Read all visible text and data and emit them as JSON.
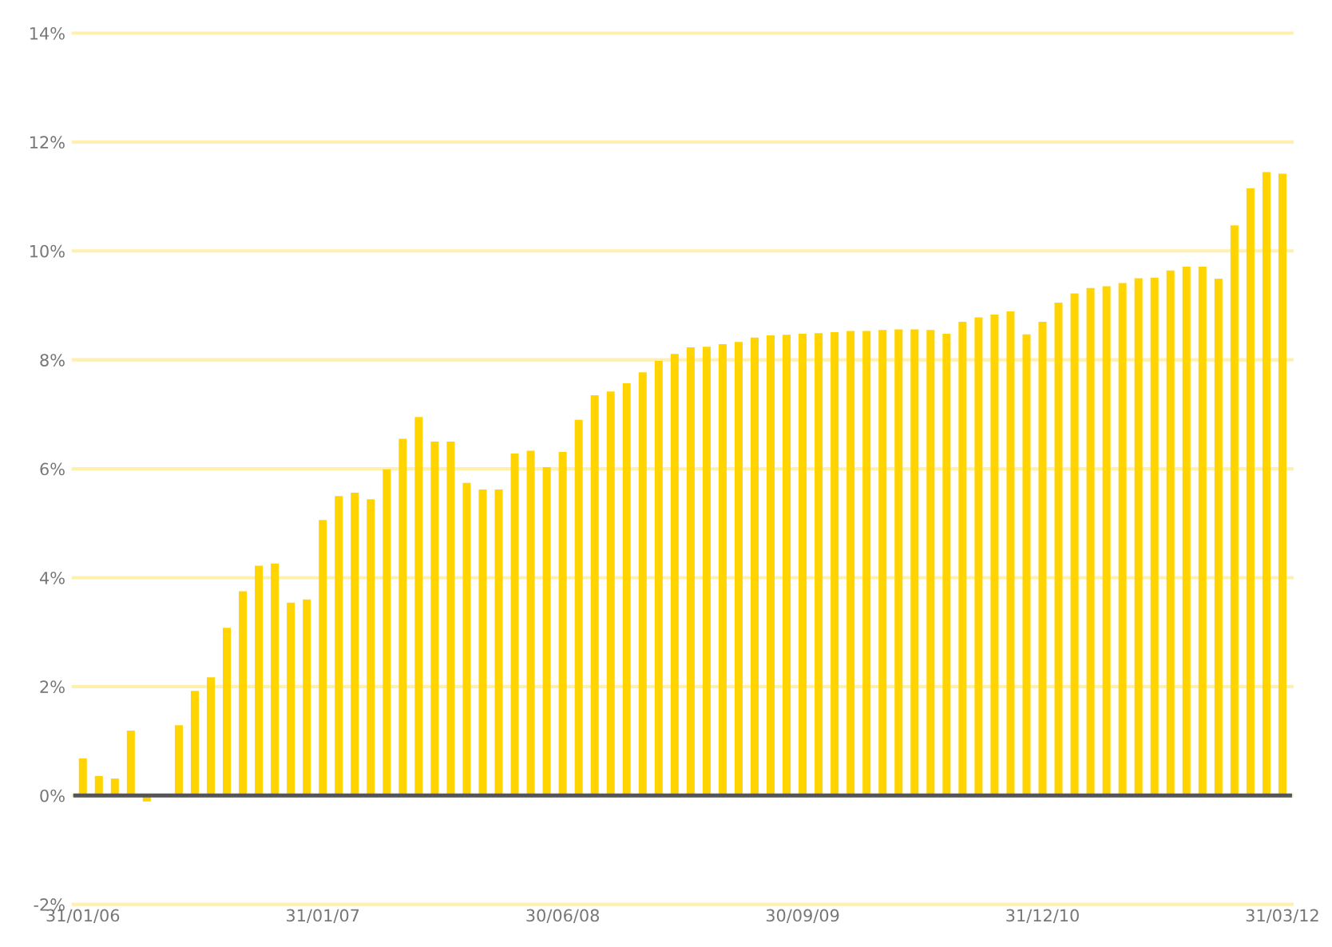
{
  "chart_data": {
    "type": "bar",
    "categories": [
      "31/01/06",
      null,
      null,
      null,
      null,
      null,
      null,
      null,
      null,
      null,
      null,
      null,
      null,
      null,
      null,
      "31/01/07",
      null,
      null,
      null,
      null,
      null,
      null,
      null,
      null,
      null,
      null,
      null,
      null,
      null,
      null,
      "30/06/08",
      null,
      null,
      null,
      null,
      null,
      null,
      null,
      null,
      null,
      null,
      null,
      null,
      null,
      null,
      "30/09/09",
      null,
      null,
      null,
      null,
      null,
      null,
      null,
      null,
      null,
      null,
      null,
      null,
      null,
      null,
      "31/12/10",
      null,
      null,
      null,
      null,
      null,
      null,
      null,
      null,
      null,
      null,
      null,
      null,
      null,
      null,
      "31/03/12"
    ],
    "values": [
      0.68,
      0.36,
      0.31,
      1.19,
      -0.11,
      0,
      1.29,
      1.92,
      2.17,
      3.08,
      3.75,
      4.22,
      4.26,
      3.54,
      3.6,
      5.06,
      5.5,
      5.56,
      5.44,
      5.99,
      6.55,
      6.95,
      6.5,
      6.5,
      5.74,
      5.62,
      5.62,
      6.28,
      6.33,
      6.03,
      6.31,
      6.9,
      7.35,
      7.42,
      7.57,
      7.77,
      7.98,
      8.11,
      8.23,
      8.24,
      8.29,
      8.33,
      8.41,
      8.45,
      8.46,
      8.48,
      8.49,
      8.51,
      8.53,
      8.53,
      8.55,
      8.56,
      8.56,
      8.55,
      8.48,
      8.7,
      8.78,
      8.83,
      8.89,
      8.47,
      8.7,
      9.05,
      9.22,
      9.32,
      9.35,
      9.41,
      9.5,
      9.51,
      9.64,
      9.71,
      9.71,
      9.49,
      10.47,
      11.15,
      11.45,
      11.42
    ],
    "color": "#ffd400",
    "ylim": [
      -2,
      14
    ],
    "yticks": [
      {
        "value": -2,
        "label": "-2%"
      },
      {
        "value": 0,
        "label": "0%"
      },
      {
        "value": 2,
        "label": "2%"
      },
      {
        "value": 4,
        "label": "4%"
      },
      {
        "value": 6,
        "label": "6%"
      },
      {
        "value": 8,
        "label": "8%"
      },
      {
        "value": 10,
        "label": "10%"
      },
      {
        "value": 12,
        "label": "12%"
      },
      {
        "value": 14,
        "label": "14%"
      }
    ],
    "grid": "y",
    "ref_lines": [
      {
        "axis": "y",
        "value": 0,
        "label": null,
        "color": "#555555"
      }
    ]
  }
}
